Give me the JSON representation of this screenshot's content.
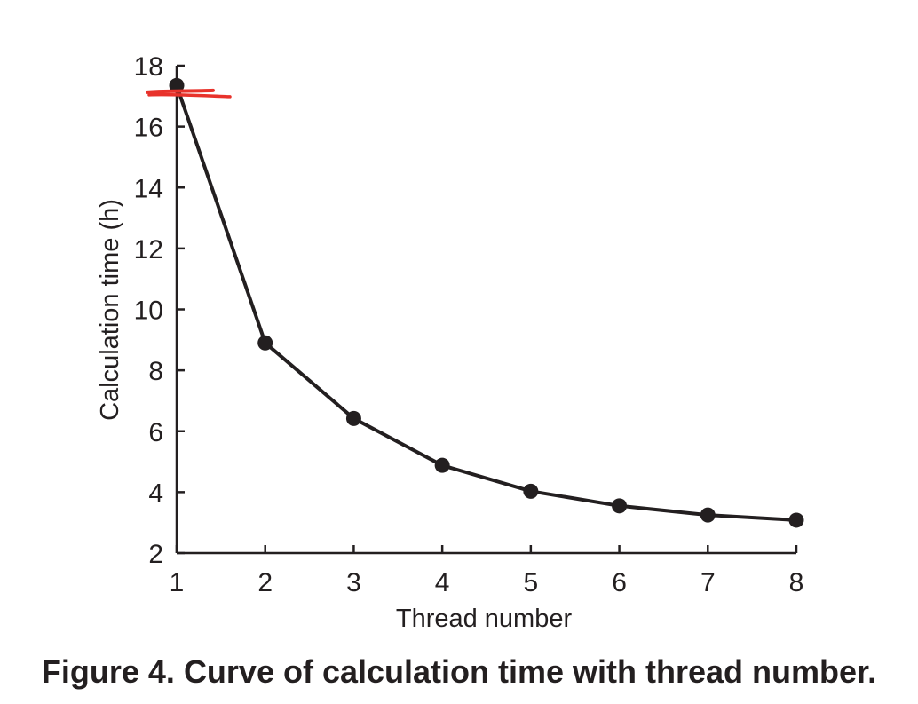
{
  "caption": "Figure 4. Curve of calculation time with thread number.",
  "chart_data": {
    "type": "line",
    "xlabel": "Thread number",
    "ylabel": "Calculation time (h)",
    "x": [
      1,
      2,
      3,
      4,
      5,
      6,
      7,
      8
    ],
    "series": [
      {
        "values": [
          17.35,
          8.9,
          6.42,
          4.88,
          4.03,
          3.55,
          3.25,
          3.08
        ]
      }
    ],
    "xlim": [
      1,
      8
    ],
    "ylim": [
      2,
      18
    ],
    "xticks": [
      "1",
      "2",
      "3",
      "4",
      "5",
      "6",
      "7",
      "8"
    ],
    "yticks": [
      "2",
      "4",
      "6",
      "8",
      "10",
      "12",
      "14",
      "16",
      "18"
    ],
    "grid": false,
    "legend": "none",
    "colors": {
      "line": "#231f20",
      "marker": "#231f20",
      "annotation": "#e8322b"
    },
    "annotations": [
      {
        "type": "red-hand-drawn-mark",
        "near_y": 17.1
      }
    ]
  }
}
